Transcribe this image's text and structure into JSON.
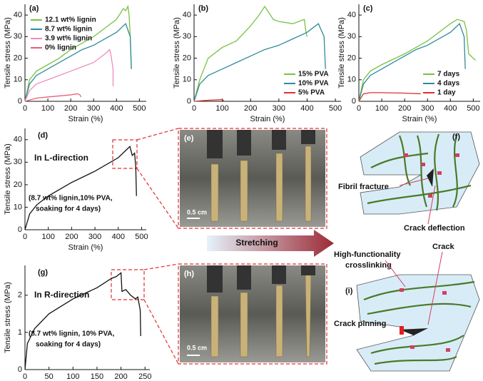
{
  "chart_data": [
    {
      "type": "line",
      "panel_label": "(a)",
      "xlabel": "Strain (%)",
      "ylabel": "Tensile stress (MPa)",
      "xlim": [
        0,
        530
      ],
      "ylim": [
        0,
        45
      ],
      "xticks": [
        0,
        100,
        200,
        300,
        400,
        500
      ],
      "yticks": [
        0,
        10,
        20,
        30,
        40
      ],
      "legend": "upper left",
      "series": [
        {
          "name": "12.1 wt% lignin",
          "color": "#7ac143",
          "x": [
            0,
            20,
            50,
            100,
            150,
            200,
            250,
            300,
            350,
            400,
            430,
            440,
            450,
            455,
            460,
            465
          ],
          "values": [
            0,
            10,
            14,
            17,
            20,
            24,
            27,
            30,
            34,
            38,
            43,
            42,
            44,
            40,
            30,
            15
          ]
        },
        {
          "name": "8.7 wt% lignin",
          "color": "#2e8b9a",
          "x": [
            0,
            20,
            50,
            100,
            150,
            200,
            250,
            300,
            350,
            400,
            440,
            450,
            460,
            465
          ],
          "values": [
            0,
            8,
            12,
            15,
            18,
            21,
            24,
            26,
            29,
            32,
            36,
            33,
            30,
            15
          ]
        },
        {
          "name": "3.9 wt% lignin",
          "color": "#f08cc0",
          "x": [
            0,
            20,
            50,
            100,
            150,
            200,
            250,
            300,
            350,
            370,
            375,
            385,
            385
          ],
          "values": [
            0,
            5,
            8,
            10,
            12,
            14,
            16,
            18,
            22,
            24,
            22,
            15,
            7
          ]
        },
        {
          "name": "0% lignin",
          "color": "#e8607a",
          "x": [
            0,
            50,
            100,
            150,
            200,
            230,
            240,
            245
          ],
          "values": [
            0,
            1.5,
            2,
            2.5,
            3,
            3.5,
            3,
            2
          ]
        }
      ]
    },
    {
      "type": "line",
      "panel_label": "(b)",
      "xlabel": "Strain (%)",
      "ylabel": "Tensile stress (MPa)",
      "xlim": [
        0,
        520
      ],
      "ylim": [
        0,
        45
      ],
      "xticks": [
        0,
        100,
        200,
        300,
        400,
        500
      ],
      "yticks": [
        0,
        10,
        20,
        30,
        40
      ],
      "legend": "lower right",
      "series": [
        {
          "name": "15% PVA",
          "color": "#7ac143",
          "x": [
            0,
            20,
            50,
            100,
            150,
            200,
            230,
            250,
            260,
            280,
            300,
            350,
            390,
            395,
            400
          ],
          "values": [
            0,
            10,
            20,
            25,
            28,
            35,
            40,
            44,
            42,
            38,
            37,
            36,
            38,
            33,
            30
          ]
        },
        {
          "name": "10% PVA",
          "color": "#2e8b9a",
          "x": [
            0,
            20,
            50,
            100,
            150,
            200,
            250,
            300,
            350,
            400,
            440,
            450,
            460,
            465
          ],
          "values": [
            0,
            8,
            12,
            15,
            18,
            21,
            24,
            26,
            29,
            32,
            36,
            33,
            30,
            15
          ]
        },
        {
          "name": "5% PVA",
          "color": "#e03030",
          "x": [
            0,
            50,
            100,
            105
          ],
          "values": [
            0,
            0.5,
            0.8,
            0.3
          ]
        }
      ]
    },
    {
      "type": "line",
      "panel_label": "(c)",
      "xlabel": "Strain (%)",
      "ylabel": "Tensile stress (MPa)",
      "xlim": [
        0,
        530
      ],
      "ylim": [
        0,
        45
      ],
      "xticks": [
        0,
        100,
        200,
        300,
        400,
        500
      ],
      "yticks": [
        0,
        10,
        20,
        30,
        40
      ],
      "legend": "lower right",
      "series": [
        {
          "name": "7 days",
          "color": "#7ac143",
          "x": [
            0,
            20,
            50,
            100,
            200,
            300,
            400,
            430,
            460,
            470,
            480,
            500,
            510
          ],
          "values": [
            0,
            10,
            14,
            17,
            22,
            28,
            36,
            38,
            37,
            33,
            22,
            20,
            19
          ]
        },
        {
          "name": "4 days",
          "color": "#2e8b9a",
          "x": [
            0,
            20,
            50,
            100,
            150,
            200,
            250,
            300,
            350,
            400,
            440,
            450,
            460,
            465
          ],
          "values": [
            0,
            8,
            12,
            15,
            18,
            21,
            24,
            26,
            29,
            32,
            36,
            33,
            30,
            15
          ]
        },
        {
          "name": "1 day",
          "color": "#e03030",
          "x": [
            0,
            20,
            50,
            100,
            200,
            270
          ],
          "values": [
            0,
            3.5,
            4,
            4,
            3.8,
            3.5
          ]
        }
      ]
    },
    {
      "type": "line",
      "panel_label": "(d)",
      "xlabel": "Strain (%)",
      "ylabel": "Tensile stress (MPa)",
      "xlim": [
        0,
        520
      ],
      "ylim": [
        0,
        45
      ],
      "xticks": [
        0,
        100,
        200,
        300,
        400,
        500
      ],
      "yticks": [
        0,
        10,
        20,
        30,
        40
      ],
      "annotations": [
        "In L-direction",
        "(8.7 wt% lignin,10% PVA,",
        "soaking for 4 days)"
      ],
      "series": [
        {
          "color": "#111111",
          "x": [
            0,
            20,
            50,
            100,
            200,
            300,
            400,
            440,
            450,
            460,
            470,
            475,
            478
          ],
          "values": [
            0,
            7,
            11,
            15,
            21,
            26,
            32,
            36,
            37,
            33,
            34,
            28,
            15
          ]
        }
      ]
    },
    {
      "type": "line",
      "panel_label": "(g)",
      "xlabel": "Strain (%)",
      "ylabel": "Tensile stress (MPa)",
      "xlim": [
        0,
        260
      ],
      "ylim": [
        0,
        2.8
      ],
      "xticks": [
        0,
        50,
        100,
        150,
        200,
        250
      ],
      "yticks": [
        0,
        1,
        2
      ],
      "annotations": [
        "In R-direction",
        "(8.7 wt% lignin, 10% PVA,",
        "soaking for 4 days)"
      ],
      "series": [
        {
          "color": "#111111",
          "x": [
            0,
            5,
            20,
            50,
            100,
            150,
            180,
            190,
            200,
            202,
            210,
            220,
            230,
            235,
            240,
            241
          ],
          "values": [
            0,
            0.7,
            1.1,
            1.5,
            1.9,
            2.2,
            2.45,
            2.5,
            2.6,
            2.1,
            2.15,
            2.0,
            1.9,
            1.95,
            1.6,
            0.9
          ]
        }
      ]
    }
  ],
  "panels": {
    "e": {
      "label": "(e)",
      "scale": "0.5 cm"
    },
    "h": {
      "label": "(h)",
      "scale": "0.5 cm"
    },
    "stretching": "Stretching",
    "f": {
      "label": "(f)",
      "fibril": "Fibril fracture",
      "deflection": "Crack deflection"
    },
    "crosslinking": [
      "High-functionality",
      "crosslinking"
    ],
    "i": {
      "label": "(i)",
      "crack": "Crack",
      "pinning": "Crack pinning"
    }
  }
}
